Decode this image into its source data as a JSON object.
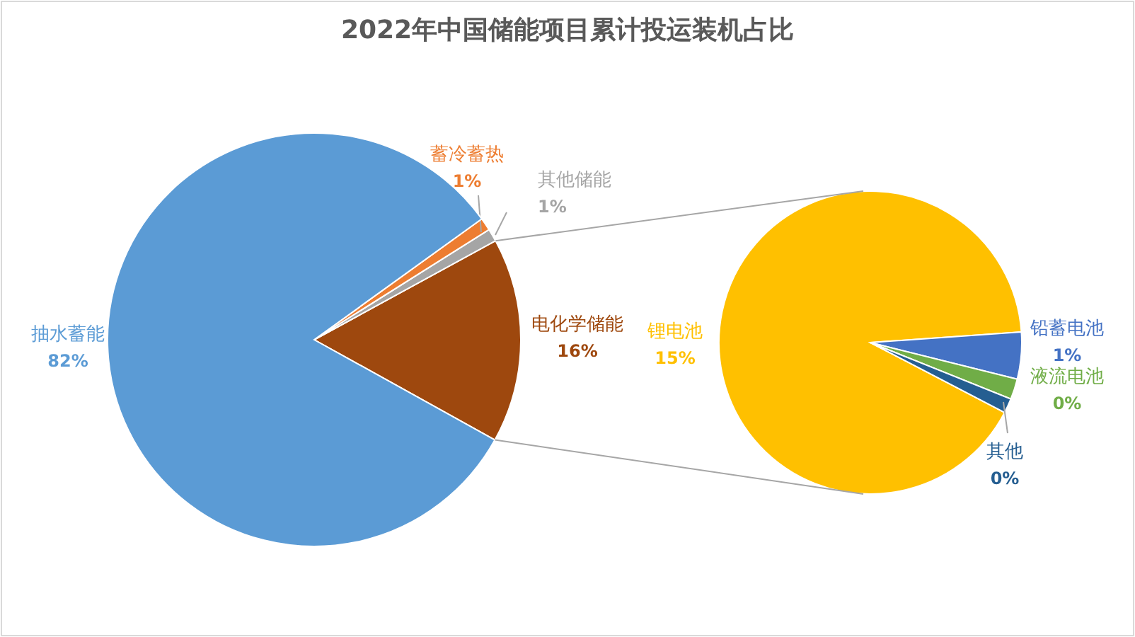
{
  "chart_data": [
    {
      "type": "pie",
      "title": "2022年中国储能项目累计投运装机占比",
      "categories": [
        "电化学储能",
        "其他储能",
        "蓄冷蓄热",
        "抽水蓄能"
      ],
      "values": [
        16,
        1,
        1,
        82
      ],
      "value_labels": [
        "16%",
        "1%",
        "1%",
        "82%"
      ],
      "colors": [
        "#9e480e",
        "#a5a5a5",
        "#ed7d31",
        "#5b9bd5"
      ]
    },
    {
      "type": "pie",
      "categories": [
        "锂电池",
        "铅蓄电池",
        "液流电池",
        "其他"
      ],
      "values": [
        14.6,
        0.8,
        0.35,
        0.25
      ],
      "value_labels": [
        "15%",
        "1%",
        "0%",
        "0%"
      ],
      "colors": [
        "#ffc000",
        "#4472c4",
        "#70ad47",
        "#255e91"
      ]
    }
  ]
}
